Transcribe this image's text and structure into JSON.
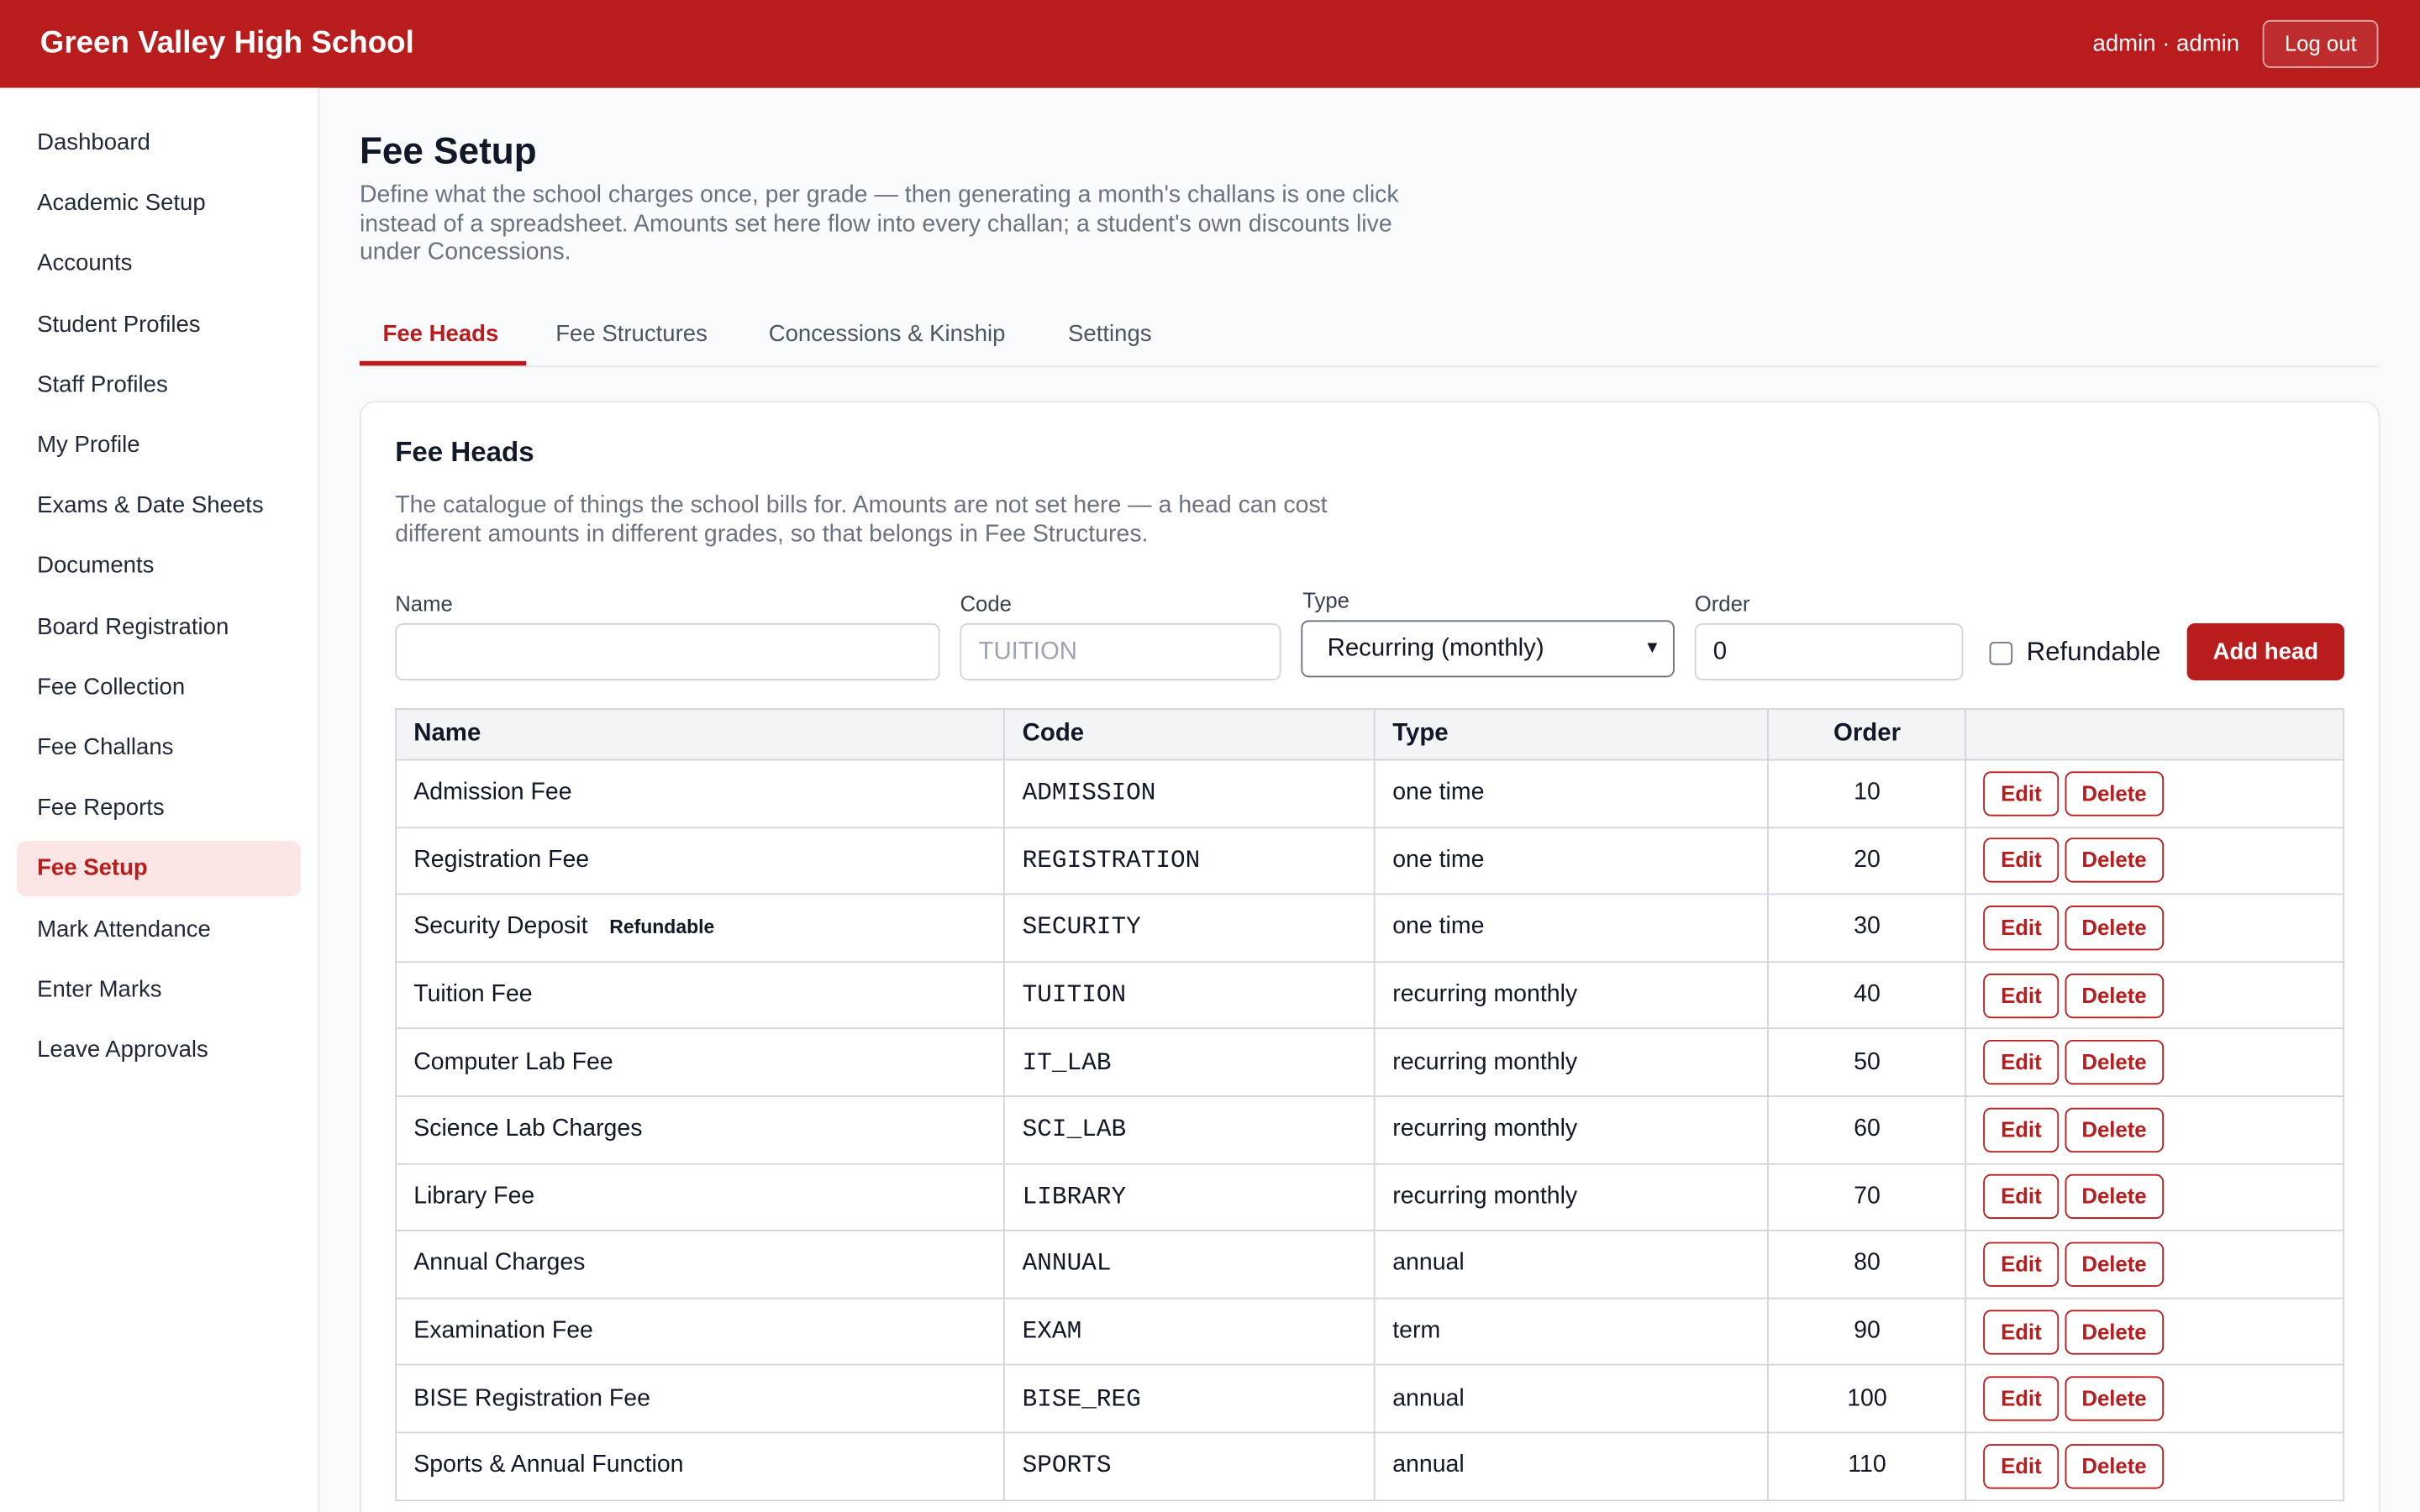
{
  "header": {
    "title": "Green Valley High School",
    "user": "admin · admin",
    "logout": "Log out"
  },
  "sidebar": {
    "items": [
      "Dashboard",
      "Academic Setup",
      "Accounts",
      "Student Profiles",
      "Staff Profiles",
      "My Profile",
      "Exams & Date Sheets",
      "Documents",
      "Board Registration",
      "Fee Collection",
      "Fee Challans",
      "Fee Reports",
      "Fee Setup",
      "Mark Attendance",
      "Enter Marks",
      "Leave Approvals"
    ]
  },
  "page": {
    "title": "Fee Setup",
    "description": "Define what the school charges once, per grade — then generating a month's challans is one click instead of a spreadsheet. Amounts set here flow into every challan; a student's own discounts live under Concessions.",
    "tabs": [
      "Fee Heads",
      "Fee Structures",
      "Concessions & Kinship",
      "Settings"
    ]
  },
  "card": {
    "title": "Fee Heads",
    "description": "The catalogue of things the school bills for. Amounts are not set here — a head can cost different amounts in different grades, so that belongs in Fee Structures.",
    "form": {
      "name_label": "Name",
      "code_label": "Code",
      "code_placeholder": "TUITION",
      "type_label": "Type",
      "type_value": "Recurring (monthly)",
      "order_label": "Order",
      "order_value": 0,
      "refundable_label": "Refundable",
      "submit": "Add head"
    },
    "table": {
      "columns": [
        "Name",
        "Code",
        "Type",
        "Order"
      ],
      "actions": [
        "Edit",
        "Delete"
      ],
      "rows": [
        {
          "name": "Admission Fee",
          "code": "ADMISSION",
          "type": "one time",
          "order": 10
        },
        {
          "name": "Registration Fee",
          "code": "REGISTRATION",
          "type": "one time",
          "order": 20
        },
        {
          "name": "Security Deposit",
          "badge": "Refundable",
          "code": "SECURITY",
          "type": "one time",
          "order": 30
        },
        {
          "name": "Tuition Fee",
          "code": "TUITION",
          "type": "recurring monthly",
          "order": 40
        },
        {
          "name": "Computer Lab Fee",
          "code": "IT_LAB",
          "type": "recurring monthly",
          "order": 50
        },
        {
          "name": "Science Lab Charges",
          "code": "SCI_LAB",
          "type": "recurring monthly",
          "order": 60
        },
        {
          "name": "Library Fee",
          "code": "LIBRARY",
          "type": "recurring monthly",
          "order": 70
        },
        {
          "name": "Annual Charges",
          "code": "ANNUAL",
          "type": "annual",
          "order": 80
        },
        {
          "name": "Examination Fee",
          "code": "EXAM",
          "type": "term",
          "order": 90
        },
        {
          "name": "BISE Registration Fee",
          "code": "BISE_REG",
          "type": "annual",
          "order": 100
        },
        {
          "name": "Sports & Annual Function",
          "code": "SPORTS",
          "type": "annual",
          "order": 110
        }
      ]
    }
  }
}
